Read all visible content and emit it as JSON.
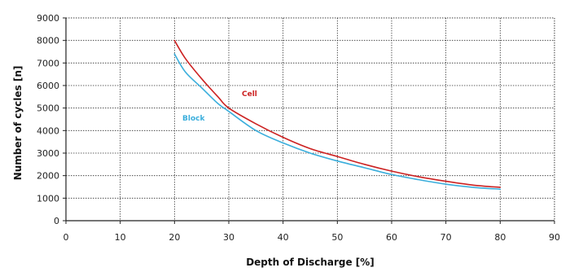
{
  "chart_data": {
    "type": "line",
    "title": "",
    "xlabel": "Depth of Discharge [%]",
    "ylabel": "Number of cycles  [n]",
    "xlim": [
      0,
      90
    ],
    "ylim": [
      0,
      9000
    ],
    "x_ticks": [
      0,
      10,
      20,
      30,
      40,
      50,
      60,
      70,
      80,
      90
    ],
    "y_ticks": [
      0,
      1000,
      2000,
      3000,
      4000,
      5000,
      6000,
      7000,
      8000,
      9000
    ],
    "grid": true,
    "legend": "none",
    "series": [
      {
        "name": "Cell",
        "color": "#cc2222",
        "x": [
          20,
          22,
          25,
          28,
          30,
          35,
          40,
          45,
          50,
          55,
          60,
          65,
          70,
          75,
          80
        ],
        "y": [
          8000,
          7200,
          6300,
          5500,
          5000,
          4300,
          3700,
          3200,
          2850,
          2500,
          2200,
          1950,
          1750,
          1580,
          1480
        ]
      },
      {
        "name": "Block",
        "color": "#3aaedc",
        "x": [
          20,
          22,
          25,
          28,
          30,
          35,
          40,
          45,
          50,
          55,
          60,
          65,
          70,
          75,
          80
        ],
        "y": [
          7400,
          6600,
          5900,
          5200,
          4850,
          4000,
          3450,
          3000,
          2650,
          2350,
          2050,
          1820,
          1620,
          1480,
          1400
        ]
      }
    ]
  }
}
